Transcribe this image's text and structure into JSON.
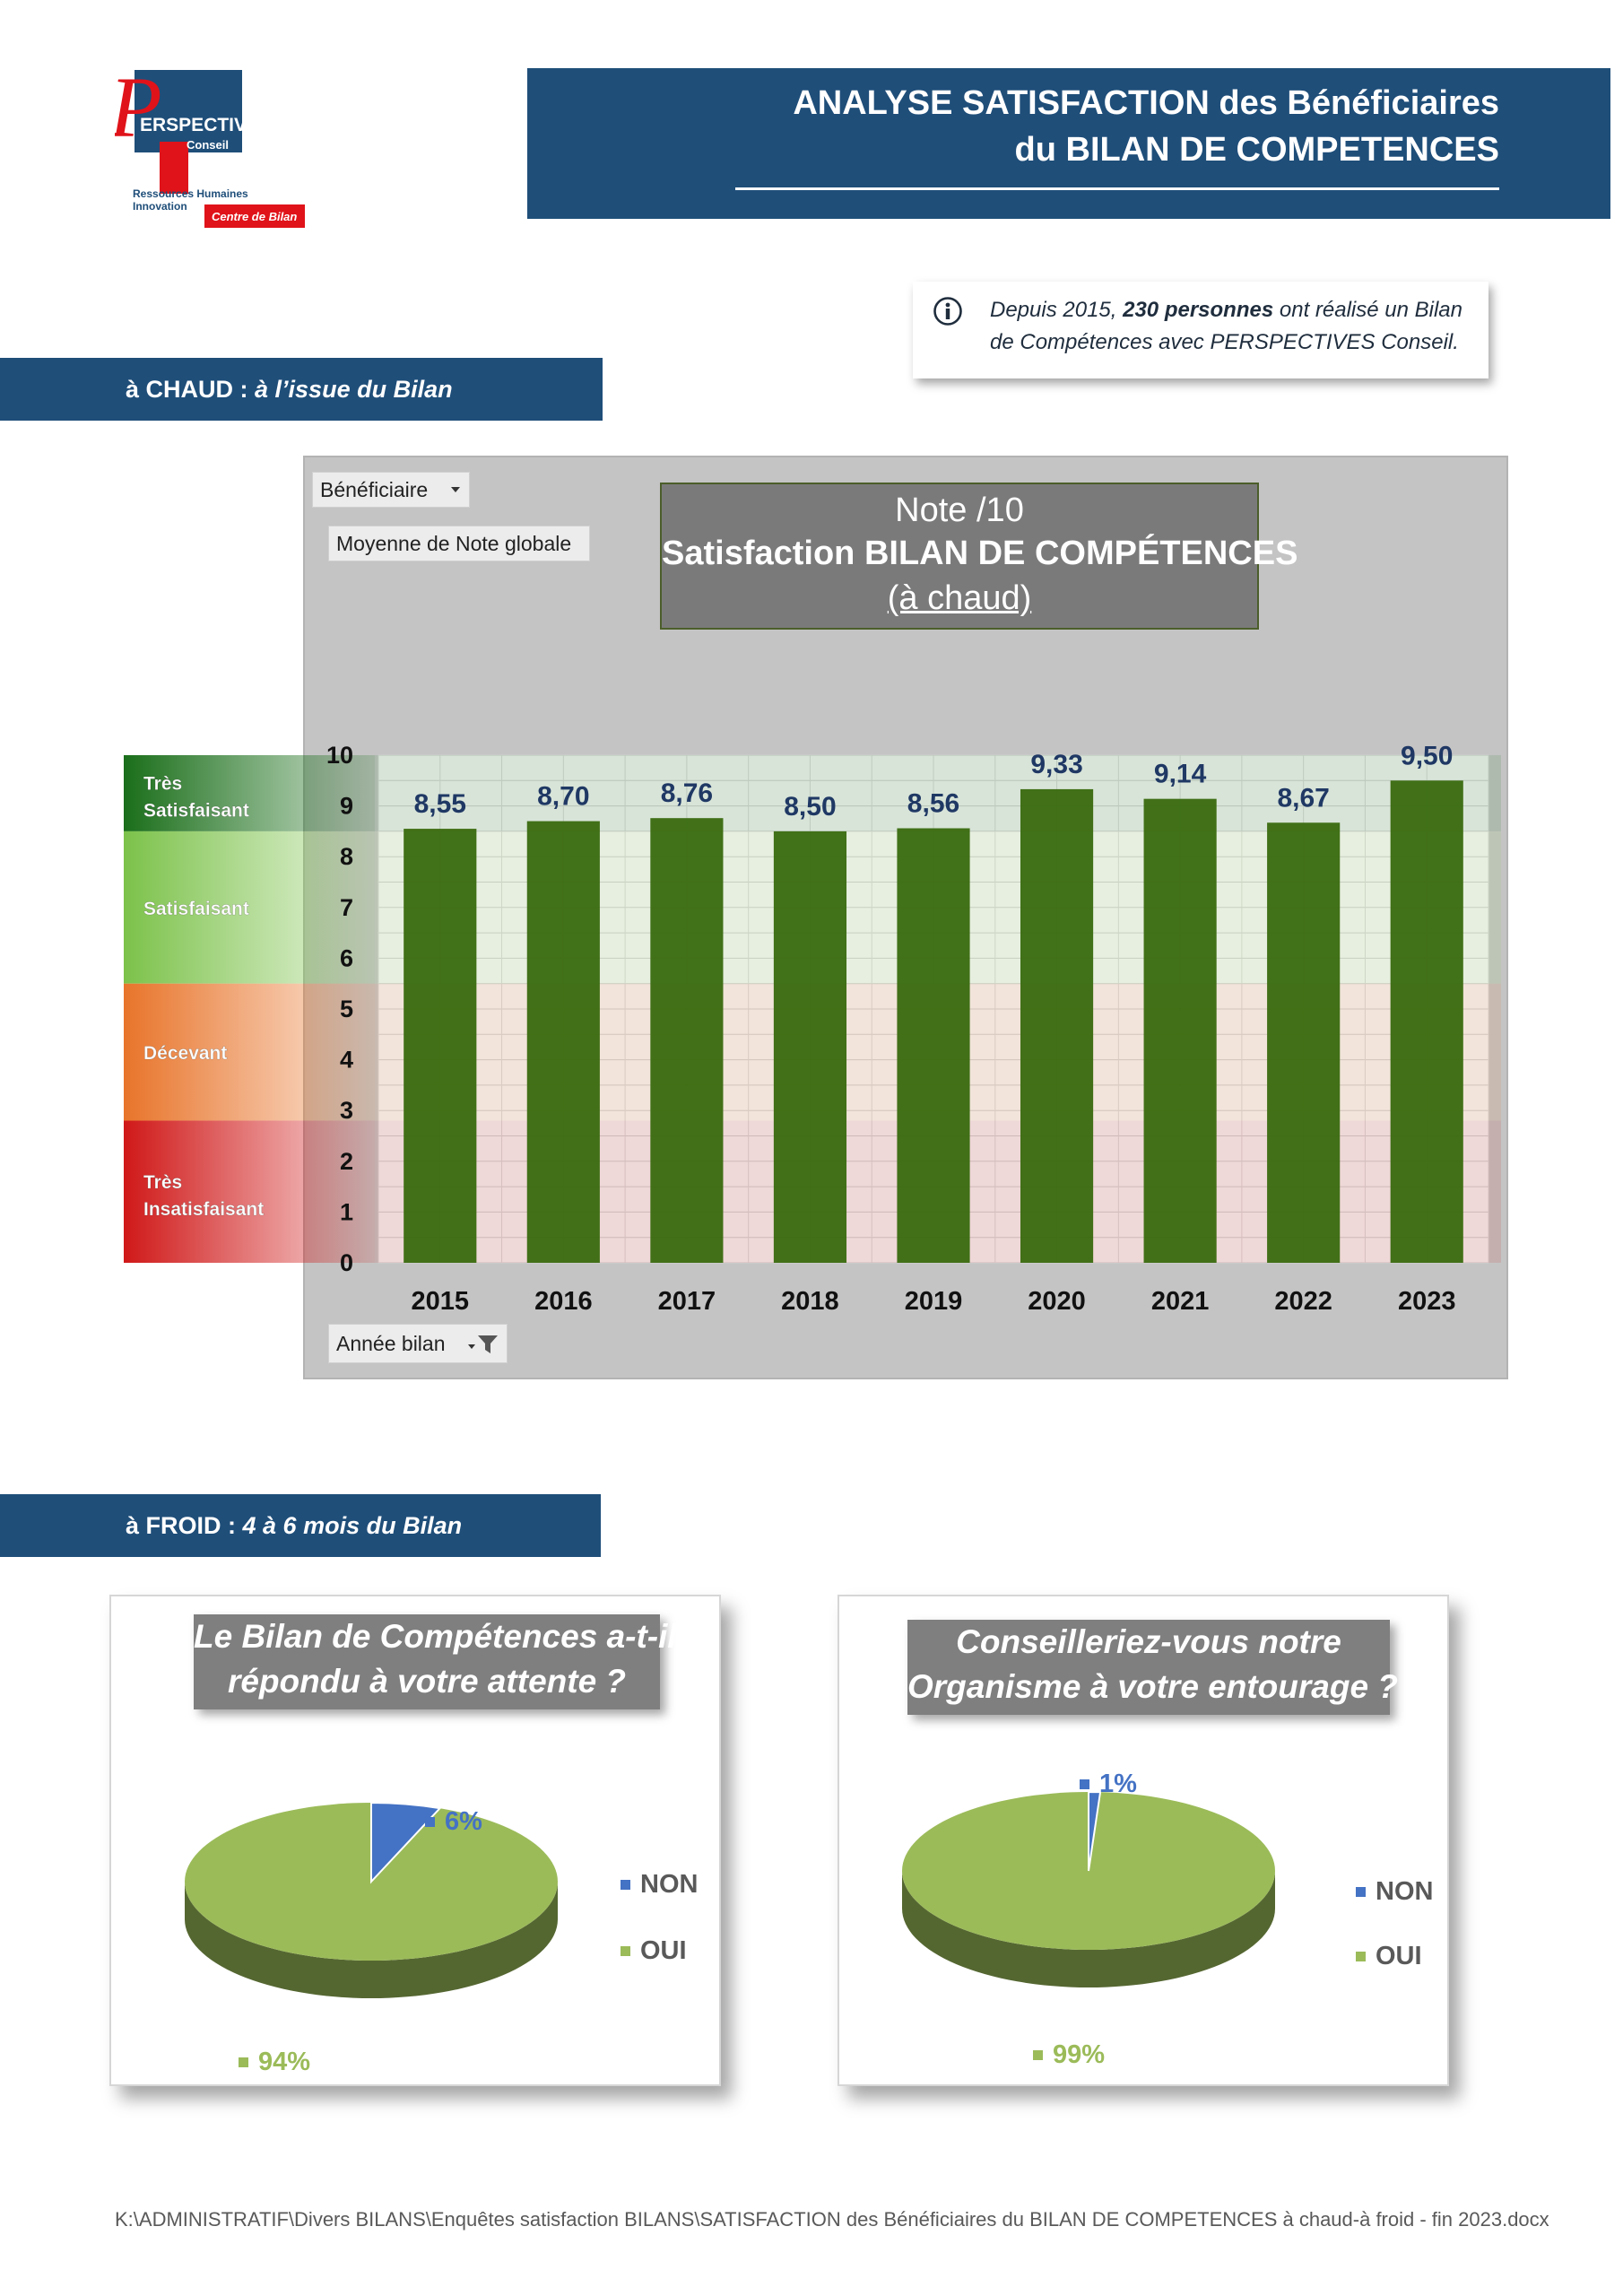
{
  "logo": {
    "name": "ERSPECTIVES",
    "initial": "P",
    "sub": "Conseil",
    "tagline_1": "Ressources Humaines",
    "tagline_2": "Innovation",
    "badge": "Centre de Bilan",
    "colors": {
      "navy": "#1f4e79",
      "red": "#e0131a"
    }
  },
  "header": {
    "line1": "ANALYSE SATISFACTION des Bénéficiaires",
    "line2": "du BILAN DE COMPETENCES"
  },
  "info": {
    "icon": "info-circle-icon",
    "prefix": "Depuis 2015, ",
    "highlight": "230 personnes",
    "suffix": " ont réalisé un Bilan",
    "line2": "de Compétences avec PERSPECTIVES Conseil."
  },
  "section_hot": {
    "label": "à CHAUD : ",
    "italic": "à l’issue du Bilan"
  },
  "section_cold": {
    "label": "à FROID : ",
    "italic": "4 à 6 mois du Bilan"
  },
  "pivot": {
    "filter_beneficiaire": "Bénéficiaire",
    "measure": "Moyenne de Note globale",
    "axis_field": "Année bilan"
  },
  "chart_title": {
    "line1": "Note /10",
    "line2": "Satisfaction BILAN DE COMPÉTENCES",
    "line3": "(à chaud)"
  },
  "chart_data": [
    {
      "type": "bar",
      "categories": [
        "2015",
        "2016",
        "2017",
        "2018",
        "2019",
        "2020",
        "2021",
        "2022",
        "2023"
      ],
      "values": [
        8.55,
        8.7,
        8.76,
        8.5,
        8.56,
        9.33,
        9.14,
        8.67,
        9.5
      ],
      "value_labels": [
        "8,55",
        "8,70",
        "8,76",
        "8,50",
        "8,56",
        "9,33",
        "9,14",
        "8,67",
        "9,50"
      ],
      "ylim": [
        0,
        10
      ],
      "yticks": [
        0,
        1,
        2,
        3,
        4,
        5,
        6,
        7,
        8,
        9,
        10
      ],
      "grid": true,
      "bands": [
        {
          "label_1": "Très",
          "label_2": "Satisfaisant",
          "from": 8.5,
          "to": 10,
          "color": "#1e7d1e"
        },
        {
          "label_1": "Satisfaisant",
          "label_2": "",
          "from": 5.5,
          "to": 8.5,
          "color": "#8fcf5a"
        },
        {
          "label_1": "Décevant",
          "label_2": "",
          "from": 2.8,
          "to": 5.5,
          "color": "#e97b2f"
        },
        {
          "label_1": "Très",
          "label_2": "Insatisfaisant",
          "from": 0,
          "to": 2.8,
          "color": "#d41c1c"
        }
      ],
      "bar_color": "#3a6b10",
      "value_label_color": "#1f3864"
    },
    {
      "type": "pie",
      "title_1": "Le Bilan de Compétences a-t-il",
      "title_2": "répondu à votre attente ?",
      "categories": [
        "NON",
        "OUI"
      ],
      "values": [
        6,
        94
      ],
      "labels": [
        "6%",
        "94%"
      ],
      "colors": [
        "#4472c4",
        "#9bbb59"
      ],
      "legend": "right"
    },
    {
      "type": "pie",
      "title_1": "Conseilleriez-vous notre",
      "title_2": "Organisme à votre entourage ?",
      "categories": [
        "NON",
        "OUI"
      ],
      "values": [
        1,
        99
      ],
      "labels": [
        "1%",
        "99%"
      ],
      "colors": [
        "#4472c4",
        "#9bbb59"
      ],
      "legend": "right"
    }
  ],
  "footer": "K:\\ADMINISTRATIF\\Divers BILANS\\Enquêtes satisfaction BILANS\\SATISFACTION des Bénéficiaires du BILAN DE COMPETENCES  à chaud-à froid - fin 2023.docx"
}
